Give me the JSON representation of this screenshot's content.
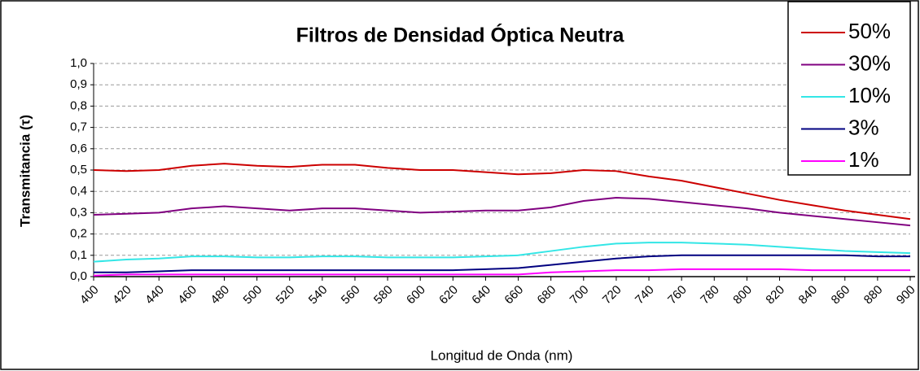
{
  "chart_data": {
    "type": "line",
    "title": "Filtros de Densidad Óptica Neutra",
    "xlabel": "Longitud de Onda (nm)",
    "ylabel": "Transmitancia (τ)",
    "x": [
      400,
      420,
      440,
      460,
      480,
      500,
      520,
      540,
      560,
      580,
      600,
      620,
      640,
      660,
      680,
      700,
      720,
      740,
      760,
      780,
      800,
      820,
      840,
      860,
      880,
      900
    ],
    "xlim": [
      400,
      900
    ],
    "xticks": [
      400,
      420,
      440,
      460,
      480,
      500,
      520,
      540,
      560,
      580,
      600,
      620,
      640,
      660,
      680,
      700,
      720,
      740,
      760,
      780,
      800,
      820,
      840,
      860,
      880,
      900
    ],
    "ylim": [
      0,
      1
    ],
    "yticks": [
      {
        "value": 0,
        "label": "0,0"
      },
      {
        "value": 0.1,
        "label": "0,1"
      },
      {
        "value": 0.2,
        "label": "0,2"
      },
      {
        "value": 0.3,
        "label": "0,3"
      },
      {
        "value": 0.4,
        "label": "0,4"
      },
      {
        "value": 0.5,
        "label": "0,5"
      },
      {
        "value": 0.6,
        "label": "0,6"
      },
      {
        "value": 0.7,
        "label": "0,7"
      },
      {
        "value": 0.8,
        "label": "0,8"
      },
      {
        "value": 0.9,
        "label": "0,9"
      },
      {
        "value": 1,
        "label": "1,0"
      }
    ],
    "grid": true,
    "legend": "upper right",
    "series": [
      {
        "name": "50%",
        "color": "#cc0000",
        "values": [
          0.5,
          0.495,
          0.5,
          0.52,
          0.53,
          0.52,
          0.515,
          0.525,
          0.525,
          0.51,
          0.5,
          0.5,
          0.49,
          0.48,
          0.485,
          0.5,
          0.495,
          0.47,
          0.45,
          0.42,
          0.39,
          0.36,
          0.335,
          0.31,
          0.29,
          0.27
        ]
      },
      {
        "name": "30%",
        "color": "#800080",
        "values": [
          0.29,
          0.295,
          0.3,
          0.32,
          0.33,
          0.32,
          0.31,
          0.32,
          0.32,
          0.31,
          0.3,
          0.305,
          0.31,
          0.31,
          0.325,
          0.355,
          0.37,
          0.365,
          0.35,
          0.335,
          0.32,
          0.3,
          0.285,
          0.27,
          0.255,
          0.24
        ]
      },
      {
        "name": "10%",
        "color": "#33e6e6",
        "values": [
          0.07,
          0.08,
          0.085,
          0.095,
          0.095,
          0.09,
          0.09,
          0.095,
          0.095,
          0.09,
          0.09,
          0.09,
          0.095,
          0.1,
          0.12,
          0.14,
          0.155,
          0.16,
          0.16,
          0.155,
          0.15,
          0.14,
          0.13,
          0.12,
          0.115,
          0.11
        ]
      },
      {
        "name": "3%",
        "color": "#000080",
        "values": [
          0.02,
          0.02,
          0.025,
          0.03,
          0.03,
          0.03,
          0.03,
          0.03,
          0.03,
          0.03,
          0.03,
          0.03,
          0.035,
          0.04,
          0.055,
          0.07,
          0.085,
          0.095,
          0.1,
          0.1,
          0.1,
          0.1,
          0.1,
          0.1,
          0.095,
          0.095
        ]
      },
      {
        "name": "1%",
        "color": "#ff00ff",
        "values": [
          0.005,
          0.01,
          0.01,
          0.01,
          0.01,
          0.01,
          0.01,
          0.01,
          0.01,
          0.01,
          0.01,
          0.01,
          0.01,
          0.01,
          0.02,
          0.025,
          0.03,
          0.03,
          0.035,
          0.035,
          0.035,
          0.035,
          0.03,
          0.03,
          0.03,
          0.03
        ]
      }
    ]
  }
}
